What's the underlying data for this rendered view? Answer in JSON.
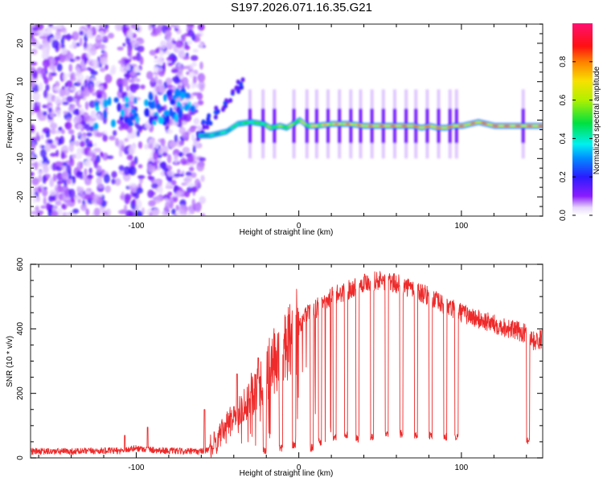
{
  "chart_data": [
    {
      "type": "heatmap",
      "title": "S197.2026.071.16.35.G21",
      "xlabel": "Height of straight line (km)",
      "ylabel": "Frequency (Hz)",
      "xlim": [
        -165,
        150
      ],
      "ylim": [
        -25,
        25
      ],
      "xticks": [
        -100,
        0,
        100
      ],
      "yticks": [
        -20,
        -10,
        0,
        10,
        20
      ],
      "colorbar": {
        "label": "Normalized spectral amplitude",
        "range": [
          0.0,
          1.0
        ],
        "ticks": [
          0.0,
          0.2,
          0.4,
          0.6,
          0.8
        ],
        "colormap": [
          {
            "v": 0.0,
            "color": "#ffffff"
          },
          {
            "v": 0.04,
            "color": "#e8d8ff"
          },
          {
            "v": 0.1,
            "color": "#8a1cff"
          },
          {
            "v": 0.2,
            "color": "#2a1cff"
          },
          {
            "v": 0.3,
            "color": "#0090ff"
          },
          {
            "v": 0.37,
            "color": "#00f0f0"
          },
          {
            "v": 0.48,
            "color": "#00e040"
          },
          {
            "v": 0.6,
            "color": "#b0f000"
          },
          {
            "v": 0.7,
            "color": "#f8e000"
          },
          {
            "v": 0.8,
            "color": "#ff8000"
          },
          {
            "v": 0.88,
            "color": "#ff1010"
          },
          {
            "v": 1.0,
            "color": "#ff1070"
          }
        ]
      },
      "features": {
        "noise_region_x": [
          -165,
          -63
        ],
        "noise_gaps_x": [
          [
            -118,
            -110
          ],
          [
            -97,
            -92
          ]
        ],
        "rising_branch": {
          "x": [
            -63,
            -30
          ],
          "freq": [
            -4,
            12
          ]
        },
        "carrier_line": {
          "x": [
            -62,
            -55,
            -45,
            -38,
            -30,
            -22,
            -18,
            -12,
            -8,
            -4,
            0,
            5,
            10,
            20,
            30,
            40,
            50,
            60,
            70,
            75,
            80,
            85,
            90,
            95,
            100,
            105,
            110,
            120,
            130,
            140,
            150
          ],
          "freq": [
            -4,
            -4,
            -3,
            -1,
            -0.5,
            -1,
            -2,
            -1.5,
            -2,
            -1,
            0,
            -1.5,
            -1.5,
            -1,
            -1,
            -1.5,
            -1.5,
            -1.5,
            -1.5,
            -2,
            -1.5,
            -2,
            -2,
            -1.5,
            -1.5,
            -1,
            -0.5,
            -1.5,
            -1.5,
            -1.5,
            -1.5
          ],
          "amplitude": [
            0.3,
            0.35,
            0.4,
            0.45,
            0.5,
            0.55,
            0.6,
            0.6,
            0.65,
            0.6,
            0.65,
            0.7,
            0.75,
            0.8,
            0.85,
            0.85,
            0.88,
            0.9,
            0.9,
            0.88,
            0.9,
            0.9,
            0.88,
            0.9,
            0.88,
            0.85,
            0.9,
            0.92,
            0.92,
            0.9,
            0.9
          ]
        },
        "vertical_streaks_x": [
          -30,
          -22,
          -15,
          -3,
          5,
          11,
          18,
          25,
          32,
          38,
          45,
          52,
          59,
          66,
          72,
          79,
          86,
          93,
          97,
          138
        ]
      }
    },
    {
      "type": "line",
      "title": "",
      "xlabel": "Height of straight line (km)",
      "ylabel": "SNR (10 * v/v)",
      "xlim": [
        -165,
        150
      ],
      "ylim": [
        0,
        600
      ],
      "xticks": [
        -100,
        0,
        100
      ],
      "yticks": [
        0,
        200,
        400,
        600
      ],
      "line_color": "#ee2a2a",
      "series": [
        {
          "name": "SNR",
          "envelope_x": [
            -165,
            -140,
            -120,
            -110,
            -100,
            -90,
            -80,
            -70,
            -60,
            -55,
            -50,
            -45,
            -40,
            -35,
            -30,
            -25,
            -20,
            -15,
            -10,
            -5,
            0,
            5,
            10,
            20,
            30,
            40,
            50,
            60,
            70,
            80,
            90,
            100,
            110,
            120,
            130,
            140,
            145,
            150
          ],
          "envelope_y": [
            20,
            20,
            22,
            22,
            30,
            25,
            22,
            20,
            20,
            28,
            55,
            100,
            130,
            160,
            190,
            230,
            260,
            300,
            320,
            360,
            400,
            450,
            460,
            500,
            520,
            545,
            550,
            540,
            525,
            500,
            470,
            450,
            430,
            415,
            400,
            385,
            360,
            370
          ],
          "dropouts": [
            {
              "x": [
                -22,
                -20
              ],
              "y": 20
            },
            {
              "x": [
                -12,
                -10
              ],
              "y": 30
            },
            {
              "x": [
                -4,
                -2
              ],
              "y": 40
            },
            {
              "x": [
                7,
                9
              ],
              "y": 30
            },
            {
              "x": [
                12,
                14
              ],
              "y": 50
            },
            {
              "x": [
                21,
                23
              ],
              "y": 60
            },
            {
              "x": [
                28,
                30
              ],
              "y": 70
            },
            {
              "x": [
                35,
                37
              ],
              "y": 60
            },
            {
              "x": [
                44,
                46
              ],
              "y": 65
            },
            {
              "x": [
                53,
                55
              ],
              "y": 75
            },
            {
              "x": [
                62,
                64
              ],
              "y": 75
            },
            {
              "x": [
                71,
                73
              ],
              "y": 70
            },
            {
              "x": [
                80,
                82
              ],
              "y": 70
            },
            {
              "x": [
                89,
                91
              ],
              "y": 65
            },
            {
              "x": [
                96,
                98
              ],
              "y": 65
            },
            {
              "x": [
                140,
                142
              ],
              "y": 55
            }
          ],
          "spikes": [
            {
              "x": -107,
              "y": 70
            },
            {
              "x": -93,
              "y": 95
            },
            {
              "x": -58,
              "y": 150
            },
            {
              "x": -38,
              "y": 260
            },
            {
              "x": -25,
              "y": 310
            }
          ]
        }
      ]
    }
  ]
}
